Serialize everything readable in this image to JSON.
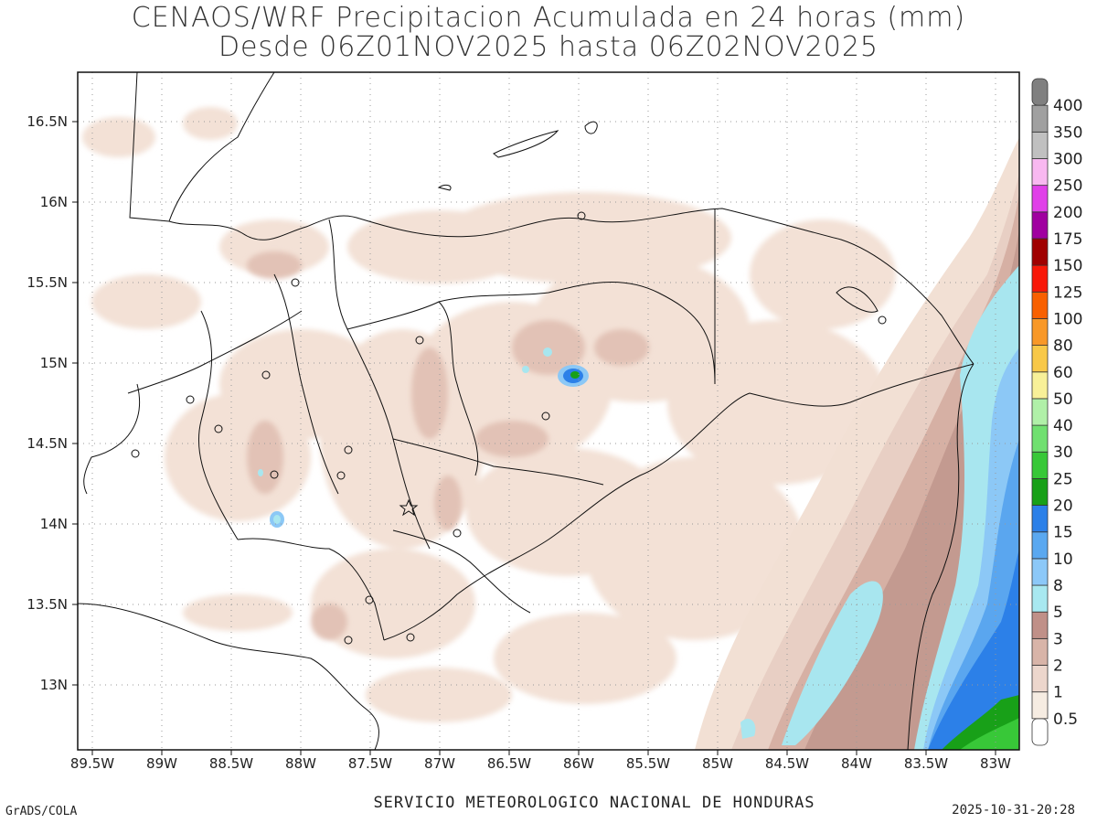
{
  "title": {
    "line1": "CENAOS/WRF Precipitacion Acumulada en 24 horas (mm)",
    "line2": "Desde 06Z01NOV2025 hasta 06Z02NOV2025"
  },
  "map": {
    "lon_range": [
      -89.5,
      -82.75
    ],
    "lat_range": [
      12.6,
      16.8
    ],
    "x_ticks": [
      "89.5W",
      "89W",
      "88.5W",
      "88W",
      "87.5W",
      "87W",
      "86.5W",
      "86W",
      "85.5W",
      "85W",
      "84.5W",
      "84W",
      "83.5W",
      "83W"
    ],
    "y_ticks": [
      "13N",
      "13.5N",
      "14N",
      "14.5N",
      "15N",
      "15.5N",
      "16N",
      "16.5N"
    ]
  },
  "colorbar": {
    "levels": [
      "0.5",
      "1",
      "2",
      "3",
      "5",
      "8",
      "10",
      "15",
      "20",
      "25",
      "30",
      "40",
      "50",
      "60",
      "80",
      "100",
      "125",
      "150",
      "175",
      "200",
      "250",
      "300",
      "350",
      "400"
    ],
    "colors": [
      "#ffffff",
      "#f6ece2",
      "#ecd6cc",
      "#d8b4a8",
      "#c09088",
      "#a8e8f0",
      "#8cc8f8",
      "#5aa8f0",
      "#2c80e8",
      "#18a018",
      "#38c838",
      "#70e070",
      "#b0f0a8",
      "#f8f098",
      "#f8c848",
      "#f89828",
      "#f86000",
      "#f81808",
      "#a00000",
      "#a000a0",
      "#e040e8",
      "#f8b8f0",
      "#c0c0c0",
      "#a0a0a0",
      "#808080"
    ]
  },
  "footer": {
    "center": "SERVICIO METEOROLOGICO NACIONAL DE HONDURAS",
    "left": "GrADS/COLA",
    "right": "2025-10-31-20:28"
  }
}
